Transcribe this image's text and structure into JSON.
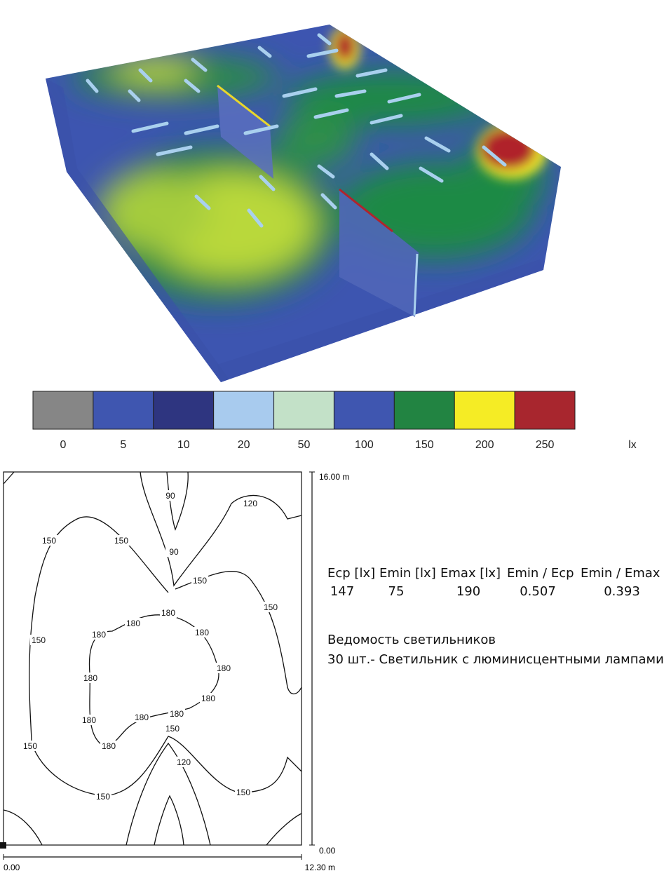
{
  "legend": {
    "items": [
      {
        "label": "0",
        "color": "#868686"
      },
      {
        "label": "5",
        "color": "#3f56b0"
      },
      {
        "label": "10",
        "color": "#2e3580"
      },
      {
        "label": "20",
        "color": "#a8cbee"
      },
      {
        "label": "50",
        "color": "#c3e1c8"
      },
      {
        "label": "100",
        "color": "#3f56b0"
      },
      {
        "label": "150",
        "color": "#228442"
      },
      {
        "label": "200",
        "color": "#f5ec25"
      },
      {
        "label": "250",
        "color": "#a8262e"
      }
    ],
    "unit": "lx"
  },
  "plan": {
    "contour_labels": [
      "90",
      "120",
      "150",
      "150",
      "90",
      "150",
      "150",
      "180",
      "180",
      "180",
      "180",
      "150",
      "180",
      "180",
      "180",
      "180",
      "180",
      "180",
      "150",
      "180",
      "150",
      "120",
      "150",
      "150"
    ],
    "y_axis": {
      "top": "16.00 m",
      "bottom": "0.00"
    },
    "x_axis": {
      "left": "0.00",
      "right": "12.30 m"
    }
  },
  "summary": {
    "headers": [
      "Ecp [lx]",
      "Emin [lx]",
      "Emax [lx]",
      "Emin / Ecp",
      "Emin / Emax"
    ],
    "values": [
      "147",
      "75",
      "190",
      "0.507",
      "0.393"
    ]
  },
  "fixtures": {
    "title": "Ведомость светильников",
    "line": "30 шт.- Светильник с люминисцентными лампами"
  }
}
